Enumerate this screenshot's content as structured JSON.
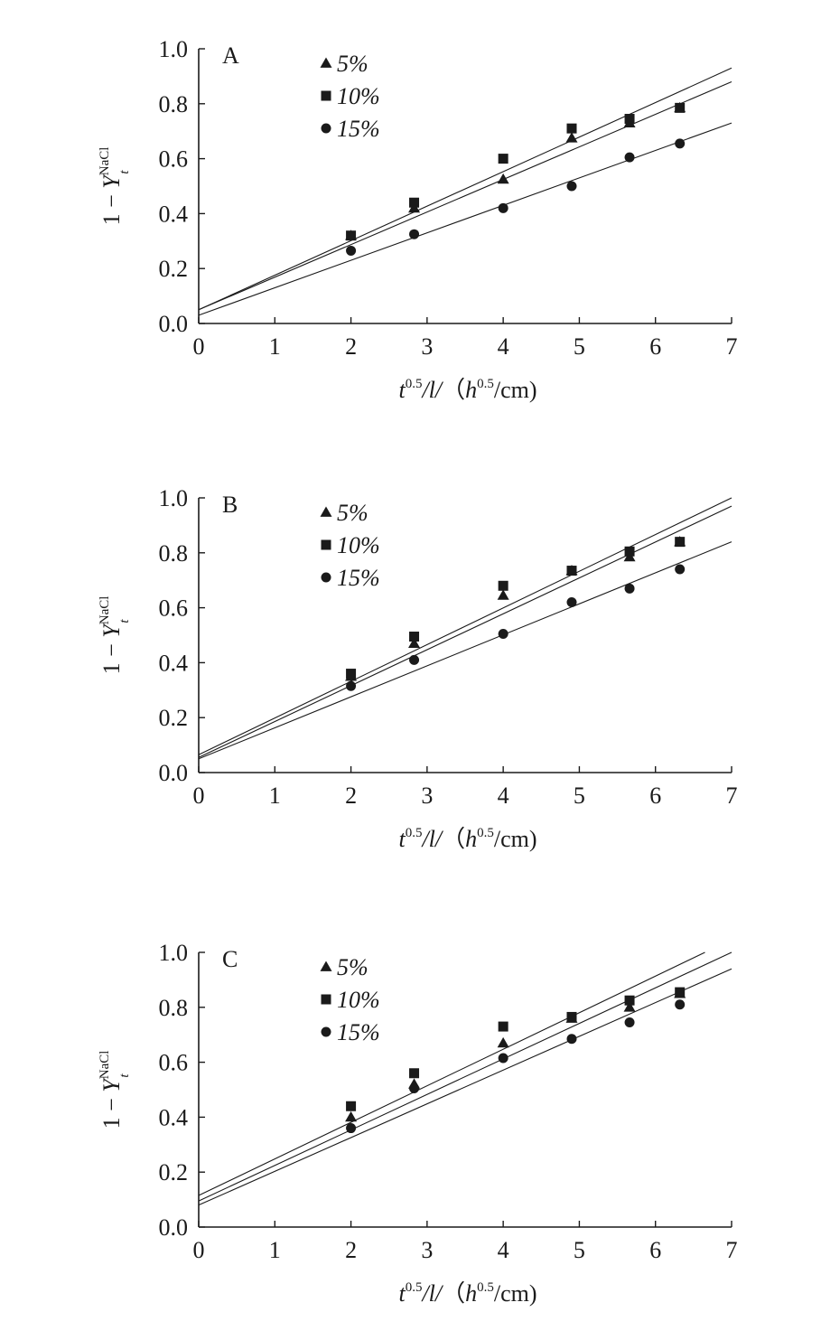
{
  "chart_data": [
    {
      "type": "scatter",
      "panel": "A",
      "xlabel": {
        "t": "t",
        "t_exp": "0.5",
        "slash": "/l/",
        "unit_open": "（",
        "h": "h",
        "h_exp": "0.5",
        "unit_rest": "/cm)"
      },
      "ylabel": {
        "prefix": "1 − ",
        "y": "Y",
        "sup": "NaCl",
        "sub": "t"
      },
      "xlim": [
        0,
        7
      ],
      "ylim": [
        0,
        1.0
      ],
      "xticks": [
        "0",
        "1",
        "2",
        "3",
        "4",
        "5",
        "6",
        "7"
      ],
      "yticks": [
        "0.0",
        "0.2",
        "0.4",
        "0.6",
        "0.8",
        "1.0"
      ],
      "legend": [
        "5%",
        "10%",
        "15%"
      ],
      "series": [
        {
          "name": "5%",
          "marker": "triangle",
          "x": [
            2.0,
            2.83,
            4.0,
            4.9,
            5.66,
            6.32
          ],
          "y": [
            0.32,
            0.42,
            0.525,
            0.675,
            0.73,
            0.785
          ],
          "fit": {
            "x": [
              0,
              7
            ],
            "y": [
              0.05,
              0.88
            ]
          }
        },
        {
          "name": "10%",
          "marker": "square",
          "x": [
            2.0,
            2.83,
            4.0,
            4.9,
            5.66,
            6.32
          ],
          "y": [
            0.32,
            0.44,
            0.6,
            0.71,
            0.745,
            0.785
          ],
          "fit": {
            "x": [
              0,
              7
            ],
            "y": [
              0.05,
              0.93
            ]
          }
        },
        {
          "name": "15%",
          "marker": "circle",
          "x": [
            2.0,
            2.83,
            4.0,
            4.9,
            5.66,
            6.32
          ],
          "y": [
            0.265,
            0.325,
            0.42,
            0.5,
            0.605,
            0.655
          ],
          "fit": {
            "x": [
              0,
              7
            ],
            "y": [
              0.03,
              0.73
            ]
          }
        }
      ]
    },
    {
      "type": "scatter",
      "panel": "B",
      "xlabel": {
        "t": "t",
        "t_exp": "0.5",
        "slash": "/l/",
        "unit_open": "（",
        "h": "h",
        "h_exp": "0.5",
        "unit_rest": "/cm)"
      },
      "ylabel": {
        "prefix": "1 − ",
        "y": "Y",
        "sup": "NaCl",
        "sub": "t"
      },
      "xlim": [
        0,
        7
      ],
      "ylim": [
        0,
        1.0
      ],
      "xticks": [
        "0",
        "1",
        "2",
        "3",
        "4",
        "5",
        "6",
        "7"
      ],
      "yticks": [
        "0.0",
        "0.2",
        "0.4",
        "0.6",
        "0.8",
        "1.0"
      ],
      "legend": [
        "5%",
        "10%",
        "15%"
      ],
      "series": [
        {
          "name": "5%",
          "marker": "triangle",
          "x": [
            2.0,
            2.83,
            4.0,
            4.9,
            5.66,
            6.32
          ],
          "y": [
            0.35,
            0.47,
            0.645,
            0.735,
            0.785,
            0.84
          ],
          "fit": {
            "x": [
              0,
              7
            ],
            "y": [
              0.055,
              0.97
            ]
          }
        },
        {
          "name": "10%",
          "marker": "square",
          "x": [
            2.0,
            2.83,
            4.0,
            4.9,
            5.66,
            6.32
          ],
          "y": [
            0.36,
            0.495,
            0.68,
            0.735,
            0.805,
            0.84
          ],
          "fit": {
            "x": [
              0,
              7
            ],
            "y": [
              0.065,
              1.0
            ]
          }
        },
        {
          "name": "15%",
          "marker": "circle",
          "x": [
            2.0,
            2.83,
            4.0,
            4.9,
            5.66,
            6.32
          ],
          "y": [
            0.315,
            0.41,
            0.505,
            0.62,
            0.67,
            0.74
          ],
          "fit": {
            "x": [
              0,
              7
            ],
            "y": [
              0.05,
              0.84
            ]
          }
        }
      ]
    },
    {
      "type": "scatter",
      "panel": "C",
      "xlabel": {
        "t": "t",
        "t_exp": "0.5",
        "slash": "/l/",
        "unit_open": "（",
        "h": "h",
        "h_exp": "0.5",
        "unit_rest": "/cm)"
      },
      "ylabel": {
        "prefix": "1 − ",
        "y": "Y",
        "sup": "NaCl",
        "sub": "t"
      },
      "xlim": [
        0,
        7
      ],
      "ylim": [
        0,
        1.0
      ],
      "xticks": [
        "0",
        "1",
        "2",
        "3",
        "4",
        "5",
        "6",
        "7"
      ],
      "yticks": [
        "0.0",
        "0.2",
        "0.4",
        "0.6",
        "0.8",
        "1.0"
      ],
      "legend": [
        "5%",
        "10%",
        "15%"
      ],
      "series": [
        {
          "name": "5%",
          "marker": "triangle",
          "x": [
            2.0,
            2.83,
            4.0,
            4.9,
            5.66,
            6.32
          ],
          "y": [
            0.4,
            0.52,
            0.67,
            0.76,
            0.8,
            0.85
          ],
          "fit": {
            "x": [
              0,
              7
            ],
            "y": [
              0.095,
              1.0
            ]
          }
        },
        {
          "name": "10%",
          "marker": "square",
          "x": [
            2.0,
            2.83,
            4.0,
            4.9,
            5.66,
            6.32
          ],
          "y": [
            0.44,
            0.56,
            0.73,
            0.765,
            0.825,
            0.855
          ],
          "fit": {
            "x": [
              0,
              6.65
            ],
            "y": [
              0.115,
              1.0
            ]
          }
        },
        {
          "name": "15%",
          "marker": "circle",
          "x": [
            2.0,
            2.83,
            4.0,
            4.9,
            5.66,
            6.32
          ],
          "y": [
            0.36,
            0.505,
            0.615,
            0.685,
            0.745,
            0.81
          ],
          "fit": {
            "x": [
              0,
              7
            ],
            "y": [
              0.08,
              0.94
            ]
          }
        }
      ]
    }
  ]
}
